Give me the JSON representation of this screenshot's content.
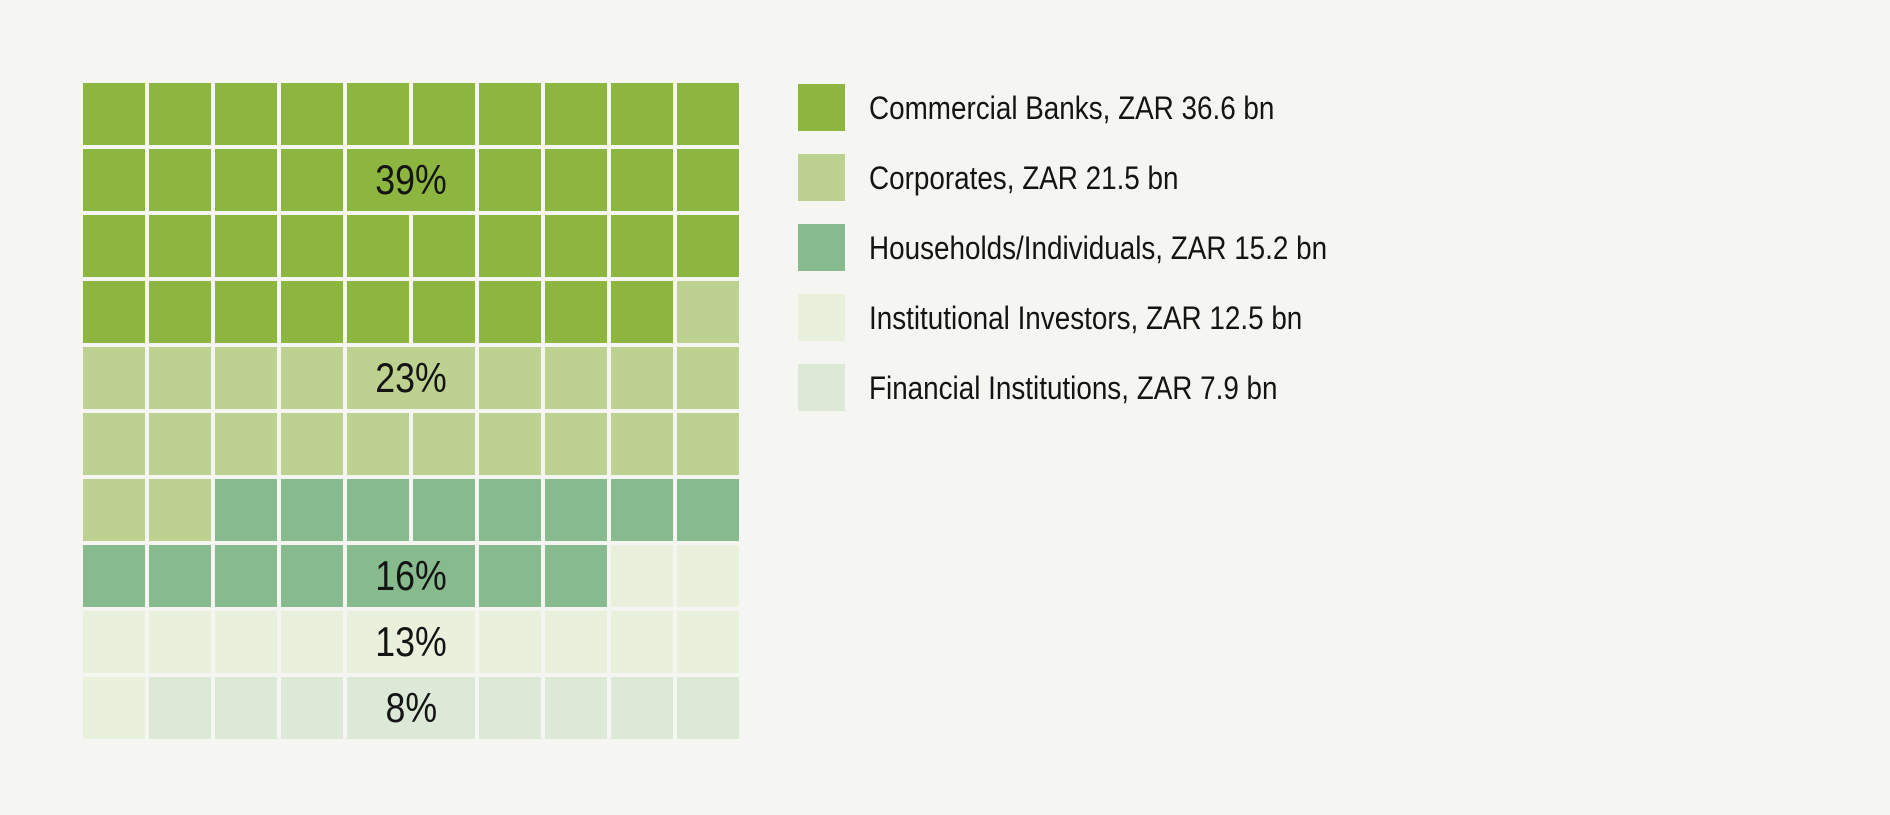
{
  "page": {
    "background_color": "#F5F5F2",
    "text_color": "#141414"
  },
  "chart_data": {
    "type": "waffle",
    "grid": {
      "rows": 10,
      "cols": 10,
      "cell_unit_percent": 1,
      "gap_color": "#F5F5F2"
    },
    "categories": [
      {
        "key": "commercial",
        "name": "Commercial Banks",
        "value_zar_bn": 36.6,
        "percent": 39,
        "percent_label": "39%",
        "cells": 39,
        "color": "#8CB63F"
      },
      {
        "key": "corporates",
        "name": "Corporates",
        "value_zar_bn": 21.5,
        "percent": 23,
        "percent_label": "23%",
        "cells": 23,
        "color": "#BDD290"
      },
      {
        "key": "households",
        "name": "Households/Individuals",
        "value_zar_bn": 15.2,
        "percent": 16,
        "percent_label": "16%",
        "cells": 16,
        "color": "#87BA8C"
      },
      {
        "key": "institutional",
        "name": "Institutional Investors",
        "value_zar_bn": 12.5,
        "percent": 13,
        "percent_label": "13%",
        "cells": 13,
        "color": "#E9F1DC"
      },
      {
        "key": "financial",
        "name": "Financial Institutions",
        "value_zar_bn": 7.9,
        "percent": 8,
        "percent_label": "8%",
        "cells": 9,
        "color": "#DBE9D6"
      }
    ],
    "rows": [
      [
        "commercial",
        "commercial",
        "commercial",
        "commercial",
        "commercial",
        "commercial",
        "commercial",
        "commercial",
        "commercial",
        "commercial"
      ],
      [
        "commercial",
        "commercial",
        "commercial",
        "commercial",
        {
          "c": "commercial",
          "span": 2,
          "label": "39%"
        },
        "commercial",
        "commercial",
        "commercial",
        "commercial"
      ],
      [
        "commercial",
        "commercial",
        "commercial",
        "commercial",
        "commercial",
        "commercial",
        "commercial",
        "commercial",
        "commercial",
        "commercial"
      ],
      [
        "commercial",
        "commercial",
        "commercial",
        "commercial",
        "commercial",
        "commercial",
        "commercial",
        "commercial",
        "commercial",
        "corporates"
      ],
      [
        "corporates",
        "corporates",
        "corporates",
        "corporates",
        {
          "c": "corporates",
          "span": 2,
          "label": "23%"
        },
        "corporates",
        "corporates",
        "corporates",
        "corporates"
      ],
      [
        "corporates",
        "corporates",
        "corporates",
        "corporates",
        "corporates",
        "corporates",
        "corporates",
        "corporates",
        "corporates",
        "corporates"
      ],
      [
        "corporates",
        "corporates",
        "households",
        "households",
        "households",
        "households",
        "households",
        "households",
        "households",
        "households"
      ],
      [
        "households",
        "households",
        "households",
        "households",
        {
          "c": "households",
          "span": 2,
          "label": "16%"
        },
        "households",
        "households",
        "institutional",
        "institutional"
      ],
      [
        "institutional",
        "institutional",
        "institutional",
        "institutional",
        {
          "c": "institutional",
          "span": 2,
          "label": "13%"
        },
        "institutional",
        "institutional",
        "institutional",
        "institutional"
      ],
      [
        "institutional",
        "financial",
        "financial",
        "financial",
        {
          "c": "financial",
          "span": 2,
          "label": "8%"
        },
        "financial",
        "financial",
        "financial",
        "financial"
      ]
    ],
    "legend": {
      "position": "right",
      "items": [
        {
          "label": "Commercial Banks, ZAR 36.6 bn",
          "color_key": "commercial"
        },
        {
          "label": "Corporates, ZAR 21.5 bn",
          "color_key": "corporates"
        },
        {
          "label": "Households/Individuals, ZAR 15.2 bn",
          "color_key": "households"
        },
        {
          "label": "Institutional Investors, ZAR 12.5 bn",
          "color_key": "institutional"
        },
        {
          "label": "Financial Institutions, ZAR 7.9 bn",
          "color_key": "financial"
        }
      ]
    }
  }
}
